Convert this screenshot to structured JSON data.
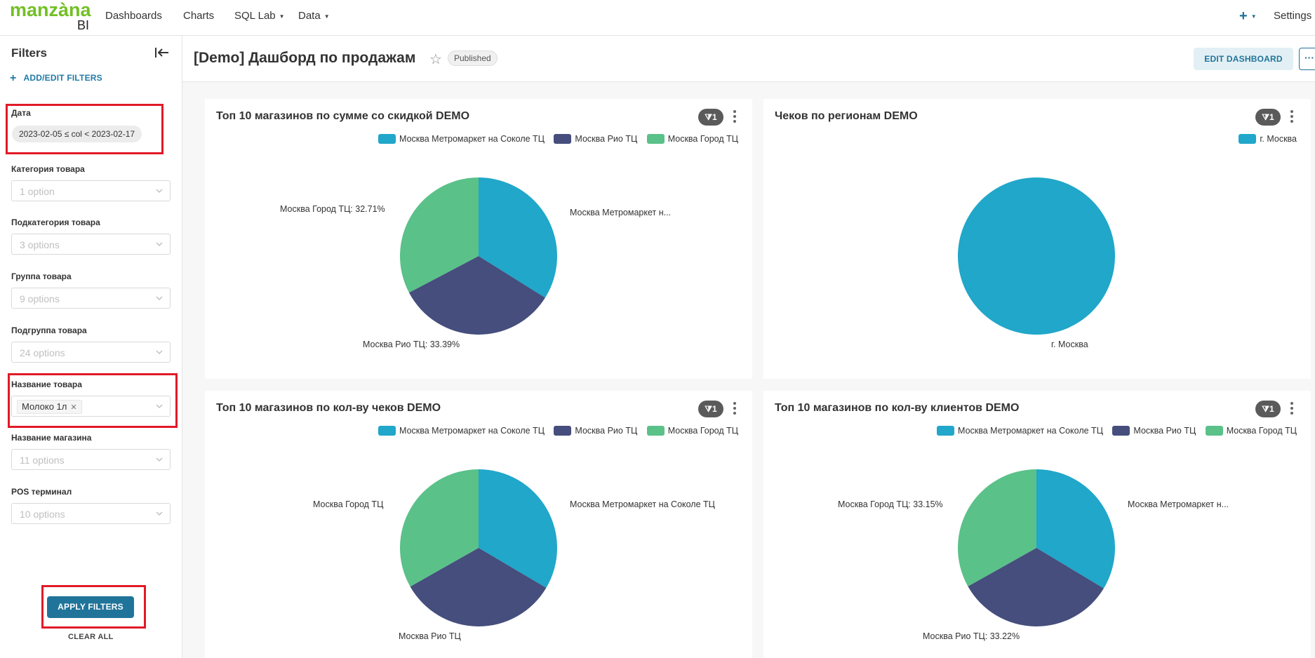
{
  "navbar": {
    "logo_main": "manzàna",
    "logo_sub": "BI",
    "items": [
      {
        "label": "Dashboards"
      },
      {
        "label": "Charts"
      },
      {
        "label": "SQL Lab"
      },
      {
        "label": "Data"
      }
    ],
    "plus_label": "+",
    "settings_label": "Settings"
  },
  "sidebar": {
    "title": "Filters",
    "add_filters": "ADD/EDIT FILTERS",
    "filters": [
      {
        "label": "Дата",
        "value": "2023-02-05 ≤ col < 2023-02-17"
      },
      {
        "label": "Категория товара",
        "placeholder": "1 option"
      },
      {
        "label": "Подкатегория товара",
        "placeholder": "3 options"
      },
      {
        "label": "Группа товара",
        "placeholder": "9 options"
      },
      {
        "label": "Подгруппа товара",
        "placeholder": "24 options"
      },
      {
        "label": "Название товара",
        "value": "Молоко 1л"
      },
      {
        "label": "Название магазина",
        "placeholder": "11 options"
      },
      {
        "label": "POS терминал",
        "placeholder": "10 options"
      }
    ],
    "apply_label": "APPLY FILTERS",
    "clear_label": "CLEAR ALL"
  },
  "header": {
    "title": "[Demo] Дашборд по продажам",
    "status": "Published",
    "edit_label": "EDIT DASHBOARD",
    "more_label": "···"
  },
  "colors": {
    "accent": "#20749a",
    "series": [
      "#20a7c9",
      "#454e7c",
      "#5ac189"
    ],
    "highlight": "#e11a27"
  },
  "charts": [
    {
      "title": "Топ 10 магазинов по сумме со скидкой DEMO",
      "filter_count": "1",
      "legend": [
        "Москва Метромаркет на Соколе ТЦ",
        "Москва Рио ТЦ",
        "Москва Город ТЦ"
      ]
    },
    {
      "title": "Чеков по регионам DEMO",
      "filter_count": "1",
      "legend": [
        "г. Москва"
      ]
    },
    {
      "title": "Топ 10 магазинов по кол-ву чеков DEMO",
      "filter_count": "1",
      "legend": [
        "Москва Метромаркет на Соколе ТЦ",
        "Москва Рио ТЦ",
        "Москва Город ТЦ"
      ]
    },
    {
      "title": "Топ 10 магазинов по кол-ву клиентов DEMO",
      "filter_count": "1",
      "legend": [
        "Москва Метромаркет на Соколе ТЦ",
        "Москва Рио ТЦ",
        "Москва Город ТЦ"
      ]
    }
  ],
  "chart_data": [
    {
      "type": "pie",
      "title": "Топ 10 магазинов по сумме со скидкой DEMO",
      "categories": [
        "Москва Метромаркет на Соколе ТЦ",
        "Москва Рио ТЦ",
        "Москва Город ТЦ"
      ],
      "values": [
        33.9,
        33.39,
        32.71
      ],
      "labels": [
        "Москва Метромаркет н...",
        "Москва Рио ТЦ: 33.39%",
        "Москва Город ТЦ: 32.71%"
      ]
    },
    {
      "type": "pie",
      "title": "Чеков по регионам DEMO",
      "categories": [
        "г. Москва"
      ],
      "values": [
        100
      ],
      "labels": [
        "г. Москва"
      ]
    },
    {
      "type": "pie",
      "title": "Топ 10 магазинов по кол-ву чеков DEMO",
      "categories": [
        "Москва Метромаркет на Соколе ТЦ",
        "Москва Рио ТЦ",
        "Москва Город ТЦ"
      ],
      "values": [
        33.5,
        33.3,
        33.2
      ],
      "labels": [
        "Москва Метромаркет на Соколе ТЦ",
        "Москва Рио ТЦ",
        "Москва Город ТЦ"
      ]
    },
    {
      "type": "pie",
      "title": "Топ 10 магазинов по кол-ву клиентов DEMO",
      "categories": [
        "Москва Метромаркет на Соколе ТЦ",
        "Москва Рио ТЦ",
        "Москва Город ТЦ"
      ],
      "values": [
        33.63,
        33.22,
        33.15
      ],
      "labels": [
        "Москва Метромаркет н...",
        "Москва Рио ТЦ: 33.22%",
        "Москва Город ТЦ: 33.15%"
      ]
    }
  ]
}
